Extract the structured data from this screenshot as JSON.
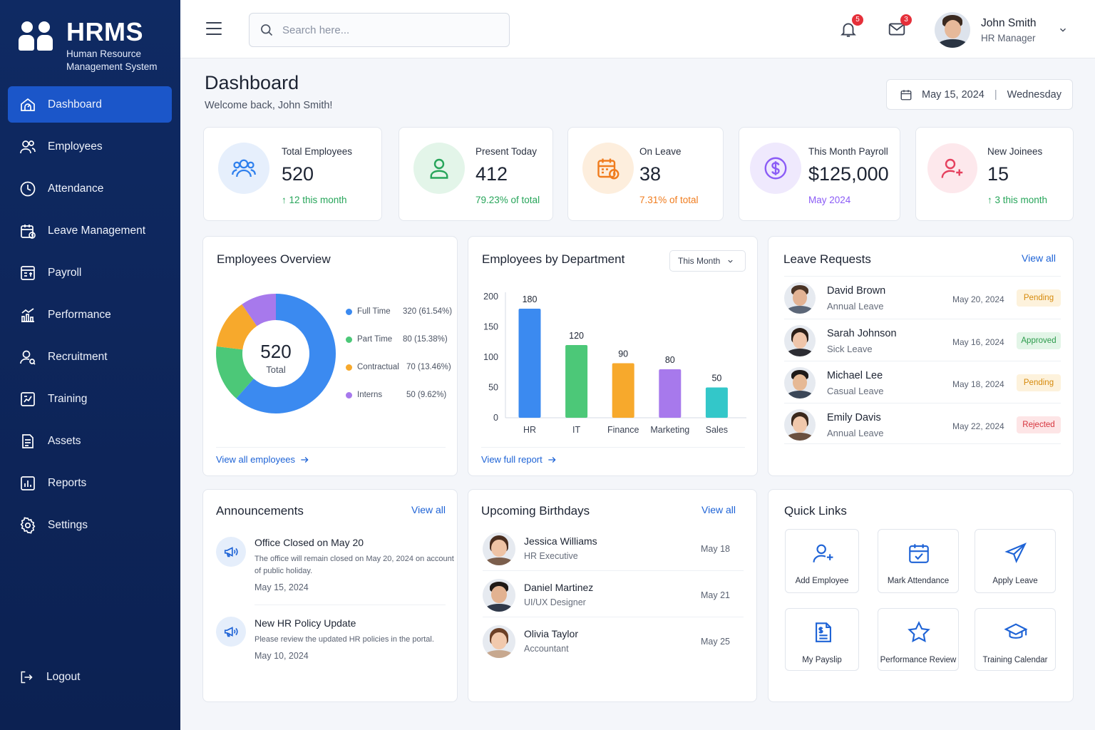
{
  "brand": {
    "name": "HRMS",
    "sub_line1": "Human Resource",
    "sub_line2": "Management System"
  },
  "nav": {
    "items": [
      {
        "label": "Dashboard",
        "icon": "dashboard-icon",
        "active": true
      },
      {
        "label": "Employees",
        "icon": "users-icon"
      },
      {
        "label": "Attendance",
        "icon": "clock-icon"
      },
      {
        "label": "Leave Management",
        "icon": "calendar-icon"
      },
      {
        "label": "Payroll",
        "icon": "payroll-icon"
      },
      {
        "label": "Performance",
        "icon": "performance-icon"
      },
      {
        "label": "Recruitment",
        "icon": "recruitment-icon"
      },
      {
        "label": "Training",
        "icon": "training-icon"
      },
      {
        "label": "Assets",
        "icon": "assets-icon"
      },
      {
        "label": "Reports",
        "icon": "reports-icon"
      },
      {
        "label": "Settings",
        "icon": "gear-icon"
      }
    ],
    "logout": "Logout"
  },
  "header": {
    "search_placeholder": "Search here...",
    "notifications_count": "5",
    "messages_count": "3",
    "user_name": "John Smith",
    "user_role": "HR Manager"
  },
  "page": {
    "title": "Dashboard",
    "welcome": "Welcome back, John Smith!",
    "date": "May 15, 2024",
    "weekday": "Wednesday"
  },
  "stats": [
    {
      "label": "Total Employees",
      "value": "520",
      "foot": "↑ 12 this month",
      "color": "#2f80ed",
      "bg": "#e6effc"
    },
    {
      "label": "Present Today",
      "value": "412",
      "foot": "79.23% of total",
      "color": "#27a55a",
      "bg": "#e3f5e9"
    },
    {
      "label": "On Leave",
      "value": "38",
      "foot": "7.31% of total",
      "color": "#f07c1e",
      "bg": "#fdeedd"
    },
    {
      "label": "This Month Payroll",
      "value": "$125,000",
      "foot": "May 2024",
      "color": "#8b5cf6",
      "bg": "#efe9fd"
    },
    {
      "label": "New Joinees",
      "value": "15",
      "foot": "↑ 3 this month",
      "color": "#e5405e",
      "bg": "#fde8ec"
    }
  ],
  "overview": {
    "title": "Employees Overview",
    "center_value": "520",
    "center_label": "Total",
    "link": "View all employees",
    "legend": [
      {
        "name": "Full Time",
        "value": "320 (61.54%)",
        "color": "#3b8af0"
      },
      {
        "name": "Part Time",
        "value": "80 (15.38%)",
        "color": "#4cc878"
      },
      {
        "name": "Contractual",
        "value": "70 (13.46%)",
        "color": "#f7a92c"
      },
      {
        "name": "Interns",
        "value": "50 (9.62%)",
        "color": "#a779ec"
      }
    ]
  },
  "chart_data": {
    "type": "bar",
    "title": "Employees by Department",
    "categories": [
      "HR",
      "IT",
      "Finance",
      "Marketing",
      "Sales"
    ],
    "values": [
      180,
      120,
      90,
      80,
      50
    ],
    "colors": [
      "#3b8af0",
      "#4cc878",
      "#f7a92c",
      "#a779ec",
      "#33c7c9"
    ],
    "ylim": [
      0,
      200
    ],
    "yticks": [
      "0",
      "50",
      "100",
      "150",
      "200"
    ],
    "xlabel": "",
    "ylabel": "",
    "grid": false
  },
  "department": {
    "filter": "This Month",
    "link": "View full report"
  },
  "leave": {
    "title": "Leave Requests",
    "view_all": "View all",
    "rows": [
      {
        "name": "David Brown",
        "type": "Annual Leave",
        "date": "May 20, 2024",
        "status": "Pending",
        "cls": "pending"
      },
      {
        "name": "Sarah Johnson",
        "type": "Sick Leave",
        "date": "May 16, 2024",
        "status": "Approved",
        "cls": "approved"
      },
      {
        "name": "Michael Lee",
        "type": "Casual Leave",
        "date": "May 18, 2024",
        "status": "Pending",
        "cls": "pending"
      },
      {
        "name": "Emily Davis",
        "type": "Annual Leave",
        "date": "May 22, 2024",
        "status": "Rejected",
        "cls": "rejected"
      }
    ]
  },
  "announcements": {
    "title": "Announcements",
    "view_all": "View all",
    "items": [
      {
        "title": "Office Closed on May 20",
        "text": "The office will remain closed on May 20, 2024 on account of public holiday.",
        "date": "May 15, 2024"
      },
      {
        "title": "New HR Policy Update",
        "text": "Please review the updated HR policies in the portal.",
        "date": "May 10, 2024"
      }
    ]
  },
  "birthdays": {
    "title": "Upcoming Birthdays",
    "view_all": "View all",
    "items": [
      {
        "name": "Jessica Williams",
        "role": "HR Executive",
        "date": "May 18"
      },
      {
        "name": "Daniel Martinez",
        "role": "UI/UX Designer",
        "date": "May 21"
      },
      {
        "name": "Olivia Taylor",
        "role": "Accountant",
        "date": "May 25"
      }
    ]
  },
  "quick_links": {
    "title": "Quick Links",
    "items": [
      {
        "label": "Add Employee",
        "icon": "add-user-icon"
      },
      {
        "label": "Mark Attendance",
        "icon": "calendar-check-icon"
      },
      {
        "label": "Apply Leave",
        "icon": "plane-icon"
      },
      {
        "label": "My Payslip",
        "icon": "payslip-icon"
      },
      {
        "label": "Performance Review",
        "icon": "star-icon"
      },
      {
        "label": "Training Calendar",
        "icon": "graduation-cap-icon"
      }
    ]
  }
}
